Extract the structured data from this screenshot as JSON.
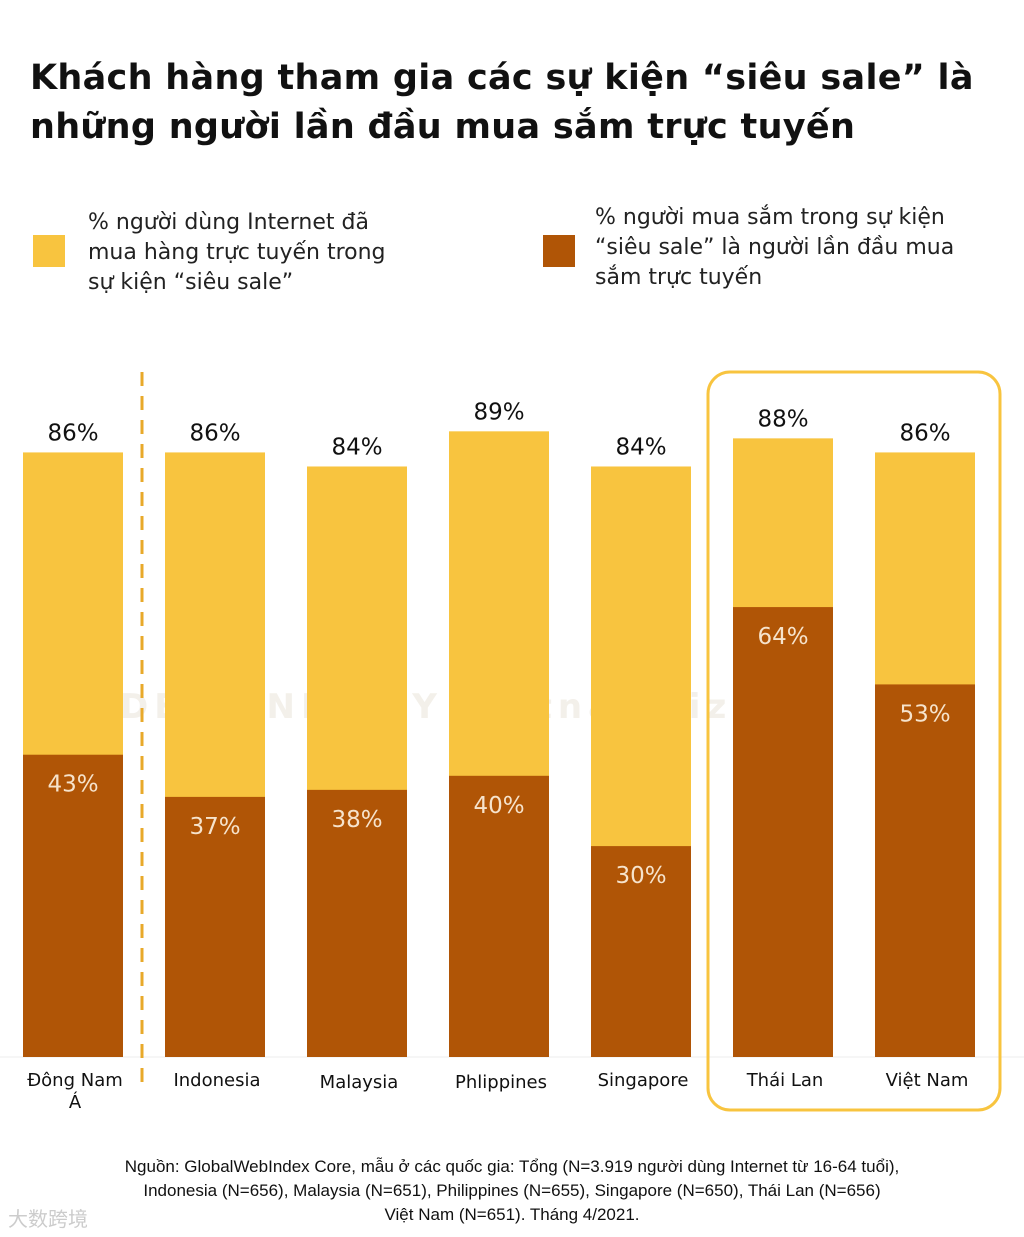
{
  "title": "Khách hàng tham gia các sự kiện “siêu sale” là những người lần đầu mua sắm trực tuyến",
  "colors": {
    "internet_users": "#F8C43F",
    "first_time": "#B05506",
    "highlight": "#F8C43F"
  },
  "chart_data": {
    "type": "bar",
    "stacking": "overlay",
    "categories": [
      "Đông Nam Á",
      "Indonesia",
      "Malaysia",
      "Phlippines",
      "Singapore",
      "Thái Lan",
      "Việt Nam"
    ],
    "series": [
      {
        "name": "% người dùng Internet đã mua hàng trực tuyến trong sự kiện “siêu sale”",
        "values": [
          86,
          86,
          84,
          89,
          84,
          88,
          86
        ]
      },
      {
        "name": "% người mua sắm trong sự kiện “siêu sale” là người lần đầu mua sắm trực tuyến",
        "values": [
          43,
          37,
          38,
          40,
          30,
          64,
          53
        ]
      }
    ],
    "value_labels": {
      "outer": [
        "86%",
        "86%",
        "84%",
        "89%",
        "84%",
        "88%",
        "86%"
      ],
      "inner": [
        "43%",
        "37%",
        "38%",
        "40%",
        "30%",
        "64%",
        "53%"
      ]
    },
    "ylim": [
      0,
      100
    ],
    "grid": false,
    "legend": "top",
    "highlighted_categories": [
      "Thái Lan",
      "Việt Nam"
    ]
  },
  "legend": {
    "item1": "% người dùng Internet đã mua hàng trực tuyến trong sự kiện “siêu sale”",
    "item2": "% người mua sắm trong sự kiện “siêu sale” là người lần đầu mua sắm trực tuyến"
  },
  "footer": {
    "line1": "Nguồn: GlobalWebIndex Core, mẫu ở các quốc gia: Tổng (N=3.919 người dùng Internet từ 16-64 tuổi),",
    "line2": "Indonesia (N=656), Malaysia (N=651), Philippines (N=655), Singapore (N=650), Thái Lan (N=656)",
    "line3": "Việt Nam (N=651). Tháng 4/2021."
  },
  "watermark": "DESIGNED BY vietnambiz",
  "watermark2": "大数跨境"
}
